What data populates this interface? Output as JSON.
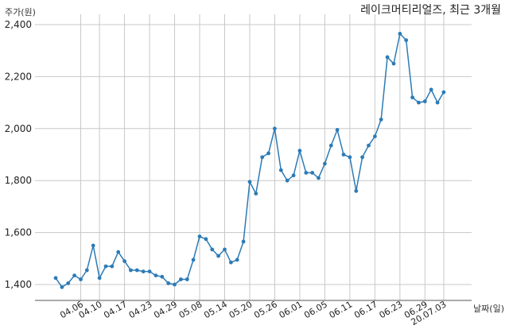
{
  "chart_data": {
    "type": "line",
    "title": "레이크머티리얼즈, 최근 3개월",
    "ylabel": "주가(원)",
    "xlabel": "날짜(일)",
    "ylim": [
      1350,
      2450
    ],
    "yticks": [
      1400,
      1600,
      1800,
      2000,
      2200,
      2400
    ],
    "ytick_labels": [
      "1,400",
      "1,600",
      "1,800",
      "2,000",
      "2,200",
      "2,400"
    ],
    "grid": true,
    "color": "#2c7bb6",
    "x_tick_labels": [
      "04.06",
      "04.10",
      "04.17",
      "04.23",
      "04.29",
      "05.08",
      "05.14",
      "05.20",
      "05.26",
      "06.01",
      "06.05",
      "06.11",
      "06.17",
      "06.23",
      "06.29",
      "20.07.03"
    ],
    "x_tick_index": [
      4,
      7,
      11,
      15,
      19,
      23,
      27,
      31,
      35,
      39,
      43,
      47,
      51,
      55,
      59,
      62
    ],
    "series": [
      {
        "values": [
          1425,
          1390,
          1405,
          1435,
          1420,
          1455,
          1550,
          1425,
          1470,
          1470,
          1525,
          1490,
          1455,
          1455,
          1450,
          1450,
          1435,
          1430,
          1405,
          1400,
          1420,
          1420,
          1495,
          1585,
          1575,
          1535,
          1510,
          1535,
          1485,
          1495,
          1565,
          1795,
          1750,
          1890,
          1905,
          2000,
          1840,
          1800,
          1820,
          1915,
          1830,
          1830,
          1810,
          1865,
          1935,
          1995,
          1900,
          1890,
          1760,
          1890,
          1935,
          1970,
          2035,
          2275,
          2250,
          2365,
          2340,
          2120,
          2100,
          2105,
          2150,
          2100,
          2140
        ]
      }
    ]
  }
}
